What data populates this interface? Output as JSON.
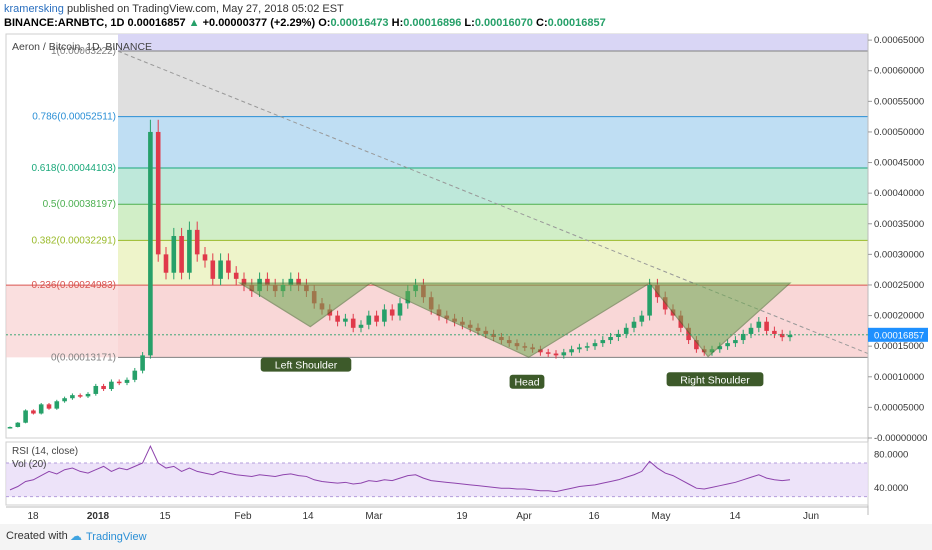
{
  "header": {
    "user": "kramersking",
    "published_text": "published on TradingView.com, May 27, 2018 05:02 EST",
    "symbol": "BINANCE:ARNBTC, 1D",
    "last": "0.00016857",
    "change_arrow": "▲",
    "change": "+0.00000377 (+2.29%)",
    "o_label": "O:",
    "o": "0.00016473",
    "h_label": "H:",
    "h": "0.00016896",
    "l_label": "L:",
    "l": "0.00016070",
    "c_label": "C:",
    "c": "0.00016857"
  },
  "footer": {
    "created_with": "Created with",
    "brand": "TradingView"
  },
  "colors": {
    "up": "#26a069",
    "down": "#e0394a",
    "rsi": "#8e44ad",
    "pattern": "#6aa84f",
    "price_tag": "#1e90ff"
  },
  "chart_data": {
    "type": "candlestick",
    "title": "Aeron / Bitcoin, 1D, BINANCE",
    "y_axis": {
      "ticks": [
        "0.00065000",
        "0.00060000",
        "0.00055000",
        "0.00050000",
        "0.00045000",
        "0.00040000",
        "0.00035000",
        "0.00030000",
        "0.00025000",
        "0.00020000",
        "0.00015000",
        "0.00010000",
        "0.00005000",
        "-0.00000000"
      ],
      "range": [
        -0.0,
        0.00066
      ],
      "current_price_label": "0.00016857",
      "current_price": 0.00016857
    },
    "x_axis": {
      "ticks": [
        "18",
        "2018",
        "15",
        "Feb",
        "14",
        "Mar",
        "19",
        "Apr",
        "16",
        "May",
        "14",
        "Jun"
      ]
    },
    "fibonacci": [
      {
        "level": "1",
        "price": "0.00063222",
        "value": 0.00063222,
        "band_color": "#d4d4d4",
        "line_color": "#808080"
      },
      {
        "level": "0.786",
        "price": "0.00052511",
        "value": 0.00052511,
        "band_color": "#a9d3ef",
        "line_color": "#2a8fd6"
      },
      {
        "level": "0.618",
        "price": "0.00044103",
        "value": 0.00044103,
        "band_color": "#a8e0cd",
        "line_color": "#1aa87a"
      },
      {
        "level": "0.5",
        "price": "0.00038197",
        "value": 0.00038197,
        "band_color": "#c2e8b4",
        "line_color": "#4caf50"
      },
      {
        "level": "0.382",
        "price": "0.00032291",
        "value": 0.00032291,
        "band_color": "#e8f0b8",
        "line_color": "#9aba2a"
      },
      {
        "level": "0.236",
        "price": "0.00024983",
        "value": 0.00024983,
        "band_color": "#f7c9c9",
        "line_color": "#d9534f"
      },
      {
        "level": "0",
        "price": "0.00013171",
        "value": 0.00013171,
        "band_color": "#f7c9c9",
        "line_color": "#808080"
      }
    ],
    "pattern_labels": {
      "left_shoulder": "Left Shoulder",
      "head": "Head",
      "right_shoulder": "Right Shoulder"
    },
    "pattern_points": {
      "left_shoulder": [
        [
          0.00025,
          0.00018,
          0.00025
        ]
      ],
      "head": [
        [
          0.00025,
          0.00013,
          0.00025
        ]
      ],
      "right_shoulder": [
        [
          0.00025,
          0.00013,
          0.00025
        ]
      ]
    },
    "candles": [
      [
        1.6e-05,
        1.8e-05
      ],
      [
        1.8e-05,
        2.5e-05
      ],
      [
        2.5e-05,
        4.5e-05
      ],
      [
        4.5e-05,
        4e-05
      ],
      [
        4e-05,
        5.5e-05
      ],
      [
        5.5e-05,
        4.8e-05
      ],
      [
        4.8e-05,
        6e-05
      ],
      [
        6e-05,
        6.5e-05
      ],
      [
        6.5e-05,
        7e-05
      ],
      [
        7e-05,
        6.8e-05
      ],
      [
        6.8e-05,
        7.2e-05
      ],
      [
        7.2e-05,
        8.5e-05
      ],
      [
        8.5e-05,
        8e-05
      ],
      [
        8e-05,
        9.2e-05
      ],
      [
        9.2e-05,
        9e-05
      ],
      [
        9e-05,
        9.5e-05
      ],
      [
        9.5e-05,
        0.00011
      ],
      [
        0.00011,
        0.000135
      ],
      [
        0.000135,
        0.0005
      ],
      [
        0.0005,
        0.0003
      ],
      [
        0.0003,
        0.00027
      ],
      [
        0.00027,
        0.00033
      ],
      [
        0.00033,
        0.00027
      ],
      [
        0.00027,
        0.00034
      ],
      [
        0.00034,
        0.0003
      ],
      [
        0.0003,
        0.00029
      ],
      [
        0.00029,
        0.00026
      ],
      [
        0.00026,
        0.00029
      ],
      [
        0.00029,
        0.00027
      ],
      [
        0.00027,
        0.00026
      ],
      [
        0.00026,
        0.00025
      ],
      [
        0.00025,
        0.00024
      ],
      [
        0.00024,
        0.00026
      ],
      [
        0.00026,
        0.00025
      ],
      [
        0.00025,
        0.00024
      ],
      [
        0.00024,
        0.00025
      ],
      [
        0.00025,
        0.00026
      ],
      [
        0.00026,
        0.00025
      ],
      [
        0.00025,
        0.00024
      ],
      [
        0.00024,
        0.00022
      ],
      [
        0.00022,
        0.00021
      ],
      [
        0.00021,
        0.0002
      ],
      [
        0.0002,
        0.00019
      ],
      [
        0.00019,
        0.000195
      ],
      [
        0.000195,
        0.00018
      ],
      [
        0.00018,
        0.000185
      ],
      [
        0.000185,
        0.0002
      ],
      [
        0.0002,
        0.00019
      ],
      [
        0.00019,
        0.00021
      ],
      [
        0.00021,
        0.0002
      ],
      [
        0.0002,
        0.00022
      ],
      [
        0.00022,
        0.00024
      ],
      [
        0.00024,
        0.00025
      ],
      [
        0.00025,
        0.00023
      ],
      [
        0.00023,
        0.00021
      ],
      [
        0.00021,
        0.0002
      ],
      [
        0.0002,
        0.000195
      ],
      [
        0.000195,
        0.00019
      ],
      [
        0.00019,
        0.000185
      ],
      [
        0.000185,
        0.00018
      ],
      [
        0.00018,
        0.000175
      ],
      [
        0.000175,
        0.00017
      ],
      [
        0.00017,
        0.000165
      ],
      [
        0.000165,
        0.00016
      ],
      [
        0.00016,
        0.000155
      ],
      [
        0.000155,
        0.00015
      ],
      [
        0.00015,
        0.000148
      ],
      [
        0.000148,
        0.000145
      ],
      [
        0.000145,
        0.00014
      ],
      [
        0.00014,
        0.000138
      ],
      [
        0.000138,
        0.000135
      ],
      [
        0.000135,
        0.00014
      ],
      [
        0.00014,
        0.000145
      ],
      [
        0.000145,
        0.000148
      ],
      [
        0.000148,
        0.00015
      ],
      [
        0.00015,
        0.000155
      ],
      [
        0.000155,
        0.00016
      ],
      [
        0.00016,
        0.000165
      ],
      [
        0.000165,
        0.00017
      ],
      [
        0.00017,
        0.00018
      ],
      [
        0.00018,
        0.00019
      ],
      [
        0.00019,
        0.0002
      ],
      [
        0.0002,
        0.00025
      ],
      [
        0.00025,
        0.00023
      ],
      [
        0.00023,
        0.00021
      ],
      [
        0.00021,
        0.0002
      ],
      [
        0.0002,
        0.00018
      ],
      [
        0.00018,
        0.00016
      ],
      [
        0.00016,
        0.000145
      ],
      [
        0.000145,
        0.00014
      ],
      [
        0.00014,
        0.000145
      ],
      [
        0.000145,
        0.00015
      ],
      [
        0.00015,
        0.000155
      ],
      [
        0.000155,
        0.00016
      ],
      [
        0.00016,
        0.00017
      ],
      [
        0.00017,
        0.00018
      ],
      [
        0.00018,
        0.00019
      ],
      [
        0.00019,
        0.000175
      ],
      [
        0.000175,
        0.00017
      ],
      [
        0.00017,
        0.00016473
      ],
      [
        0.00016473,
        0.00016857
      ]
    ],
    "rsi": {
      "label": "RSI (14, close)",
      "vol_label": "Vol (20)",
      "ticks": [
        "80.0000",
        "40.0000"
      ],
      "range": [
        20,
        95
      ],
      "values": [
        38,
        42,
        48,
        50,
        55,
        60,
        57,
        62,
        64,
        60,
        58,
        62,
        66,
        60,
        64,
        62,
        66,
        70,
        90,
        70,
        64,
        66,
        60,
        64,
        60,
        58,
        56,
        60,
        58,
        56,
        55,
        54,
        56,
        55,
        54,
        56,
        57,
        55,
        54,
        50,
        48,
        47,
        46,
        47,
        45,
        46,
        49,
        48,
        50,
        49,
        52,
        55,
        56,
        52,
        49,
        48,
        47,
        46,
        45,
        44,
        43,
        42,
        41,
        40,
        40,
        39,
        39,
        38,
        37,
        37,
        36,
        38,
        40,
        42,
        43,
        44,
        46,
        48,
        50,
        53,
        56,
        60,
        72,
        64,
        58,
        55,
        50,
        45,
        40,
        39,
        41,
        43,
        45,
        47,
        50,
        53,
        56,
        52,
        50,
        49,
        50
      ]
    }
  }
}
